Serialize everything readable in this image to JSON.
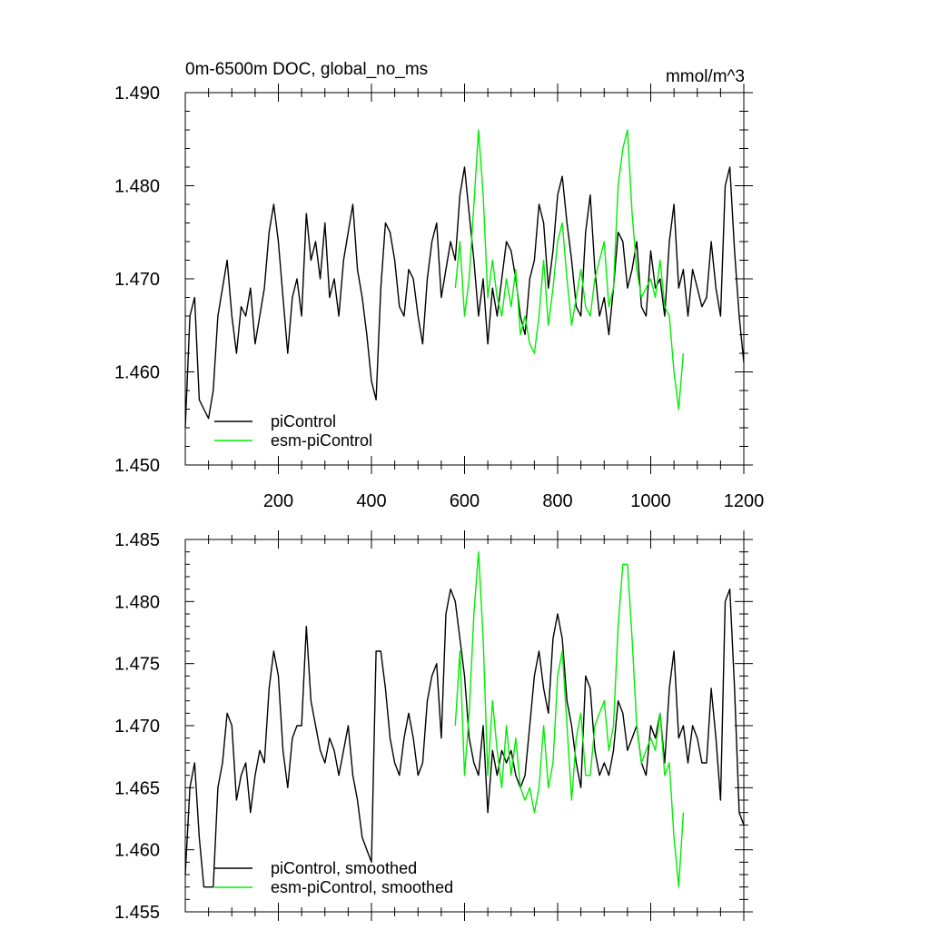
{
  "chart_data": [
    {
      "type": "line",
      "title": "0m-6500m DOC, global_no_ms",
      "units": "mmol/m^3",
      "xlabel": "",
      "ylabel": "",
      "xlim": [
        0,
        1200
      ],
      "ylim": [
        1.45,
        1.49
      ],
      "x_ticks": [
        200,
        400,
        600,
        800,
        1000,
        1200
      ],
      "x_tick_labels": [
        "200",
        "400",
        "600",
        "800",
        "1000",
        "1200"
      ],
      "y_ticks": [
        1.45,
        1.46,
        1.47,
        1.48,
        1.49
      ],
      "y_tick_labels": [
        "1.450",
        "1.460",
        "1.470",
        "1.480",
        "1.490"
      ],
      "grid": false,
      "legend_position": "bottom-left",
      "series": [
        {
          "name": "piControl",
          "color": "#000000",
          "x": [
            0,
            10,
            20,
            30,
            40,
            50,
            60,
            70,
            80,
            90,
            100,
            110,
            120,
            130,
            140,
            150,
            160,
            170,
            180,
            190,
            200,
            210,
            220,
            230,
            240,
            250,
            260,
            270,
            280,
            290,
            300,
            310,
            320,
            330,
            340,
            350,
            360,
            370,
            380,
            390,
            400,
            410,
            420,
            430,
            440,
            450,
            460,
            470,
            480,
            490,
            500,
            510,
            520,
            530,
            540,
            550,
            560,
            570,
            580,
            590,
            600,
            610,
            620,
            630,
            640,
            650,
            660,
            670,
            680,
            690,
            700,
            710,
            720,
            730,
            740,
            750,
            760,
            770,
            780,
            790,
            800,
            810,
            820,
            830,
            840,
            850,
            860,
            870,
            880,
            890,
            900,
            910,
            920,
            930,
            940,
            950,
            960,
            970,
            980,
            990,
            1000,
            1010,
            1020,
            1030,
            1040,
            1050,
            1060,
            1070,
            1080,
            1090,
            1100,
            1110,
            1120,
            1130,
            1140,
            1150,
            1160,
            1170,
            1180,
            1190,
            1200
          ],
          "values": [
            1.454,
            1.466,
            1.468,
            1.457,
            1.456,
            1.455,
            1.458,
            1.466,
            1.469,
            1.472,
            1.466,
            1.462,
            1.467,
            1.466,
            1.469,
            1.463,
            1.466,
            1.469,
            1.475,
            1.478,
            1.474,
            1.468,
            1.462,
            1.468,
            1.47,
            1.466,
            1.477,
            1.472,
            1.474,
            1.47,
            1.476,
            1.468,
            1.47,
            1.466,
            1.472,
            1.475,
            1.478,
            1.471,
            1.468,
            1.464,
            1.459,
            1.457,
            1.469,
            1.476,
            1.475,
            1.472,
            1.467,
            1.466,
            1.471,
            1.47,
            1.466,
            1.463,
            1.47,
            1.474,
            1.476,
            1.468,
            1.471,
            1.474,
            1.472,
            1.479,
            1.482,
            1.477,
            1.472,
            1.466,
            1.47,
            1.463,
            1.469,
            1.466,
            1.47,
            1.474,
            1.473,
            1.47,
            1.466,
            1.464,
            1.47,
            1.472,
            1.478,
            1.476,
            1.469,
            1.473,
            1.479,
            1.481,
            1.476,
            1.472,
            1.467,
            1.466,
            1.475,
            1.479,
            1.471,
            1.466,
            1.468,
            1.464,
            1.469,
            1.475,
            1.474,
            1.469,
            1.471,
            1.474,
            1.467,
            1.466,
            1.473,
            1.469,
            1.47,
            1.466,
            1.474,
            1.478,
            1.469,
            1.471,
            1.466,
            1.471,
            1.469,
            1.467,
            1.468,
            1.474,
            1.469,
            1.466,
            1.48,
            1.482,
            1.473,
            1.466,
            1.461
          ],
          "label": "piControl"
        },
        {
          "name": "esm-piControl",
          "color": "#00ee00",
          "x": [
            580,
            590,
            600,
            610,
            620,
            630,
            640,
            650,
            660,
            670,
            680,
            690,
            700,
            710,
            720,
            730,
            740,
            750,
            760,
            770,
            780,
            790,
            800,
            810,
            820,
            830,
            840,
            850,
            860,
            870,
            880,
            890,
            900,
            910,
            920,
            930,
            940,
            950,
            960,
            970,
            980,
            990,
            1000,
            1010,
            1020,
            1030,
            1040,
            1050,
            1060,
            1070
          ],
          "values": [
            1.469,
            1.474,
            1.466,
            1.47,
            1.478,
            1.486,
            1.479,
            1.468,
            1.472,
            1.468,
            1.466,
            1.47,
            1.467,
            1.471,
            1.464,
            1.466,
            1.463,
            1.462,
            1.466,
            1.472,
            1.465,
            1.469,
            1.474,
            1.476,
            1.47,
            1.465,
            1.468,
            1.471,
            1.467,
            1.466,
            1.47,
            1.472,
            1.474,
            1.467,
            1.469,
            1.48,
            1.484,
            1.486,
            1.477,
            1.471,
            1.468,
            1.469,
            1.47,
            1.468,
            1.472,
            1.467,
            1.466,
            1.46,
            1.456,
            1.462
          ],
          "label": "esm-piControl"
        }
      ]
    },
    {
      "type": "line",
      "title": "",
      "xlabel": "",
      "ylabel": "",
      "xlim": [
        0,
        1200
      ],
      "ylim": [
        1.455,
        1.485
      ],
      "y_ticks": [
        1.455,
        1.46,
        1.465,
        1.47,
        1.475,
        1.48,
        1.485
      ],
      "y_tick_labels": [
        "1.455",
        "1.460",
        "1.465",
        "1.470",
        "1.475",
        "1.480",
        "1.485"
      ],
      "grid": false,
      "legend_position": "bottom-center",
      "series": [
        {
          "name": "piControl, smoothed",
          "color": "#000000",
          "x": [
            0,
            10,
            20,
            30,
            40,
            50,
            60,
            70,
            80,
            90,
            100,
            110,
            120,
            130,
            140,
            150,
            160,
            170,
            180,
            190,
            200,
            210,
            220,
            230,
            240,
            250,
            260,
            270,
            280,
            290,
            300,
            310,
            320,
            330,
            340,
            350,
            360,
            370,
            380,
            390,
            400,
            410,
            420,
            430,
            440,
            450,
            460,
            470,
            480,
            490,
            500,
            510,
            520,
            530,
            540,
            550,
            560,
            570,
            580,
            590,
            600,
            610,
            620,
            630,
            640,
            650,
            660,
            670,
            680,
            690,
            700,
            710,
            720,
            730,
            740,
            750,
            760,
            770,
            780,
            790,
            800,
            810,
            820,
            830,
            840,
            850,
            860,
            870,
            880,
            890,
            900,
            910,
            920,
            930,
            940,
            950,
            960,
            970,
            980,
            990,
            1000,
            1010,
            1020,
            1030,
            1040,
            1050,
            1060,
            1070,
            1080,
            1090,
            1100,
            1110,
            1120,
            1130,
            1140,
            1150,
            1160,
            1170,
            1180,
            1190,
            1200
          ],
          "values": [
            1.458,
            1.465,
            1.467,
            1.461,
            1.457,
            1.457,
            1.457,
            1.465,
            1.467,
            1.471,
            1.47,
            1.464,
            1.466,
            1.467,
            1.463,
            1.466,
            1.468,
            1.467,
            1.473,
            1.476,
            1.474,
            1.468,
            1.465,
            1.469,
            1.47,
            1.47,
            1.478,
            1.472,
            1.47,
            1.468,
            1.467,
            1.469,
            1.468,
            1.466,
            1.468,
            1.47,
            1.466,
            1.464,
            1.461,
            1.46,
            1.459,
            1.476,
            1.476,
            1.473,
            1.469,
            1.467,
            1.466,
            1.469,
            1.471,
            1.469,
            1.466,
            1.467,
            1.472,
            1.474,
            1.475,
            1.469,
            1.479,
            1.481,
            1.48,
            1.477,
            1.474,
            1.469,
            1.467,
            1.466,
            1.47,
            1.463,
            1.468,
            1.466,
            1.468,
            1.467,
            1.468,
            1.466,
            1.465,
            1.466,
            1.47,
            1.474,
            1.476,
            1.473,
            1.471,
            1.477,
            1.479,
            1.477,
            1.472,
            1.47,
            1.467,
            1.465,
            1.474,
            1.473,
            1.468,
            1.466,
            1.467,
            1.466,
            1.468,
            1.472,
            1.471,
            1.468,
            1.469,
            1.47,
            1.467,
            1.466,
            1.47,
            1.469,
            1.471,
            1.467,
            1.473,
            1.476,
            1.469,
            1.47,
            1.467,
            1.47,
            1.469,
            1.467,
            1.467,
            1.473,
            1.469,
            1.464,
            1.48,
            1.481,
            1.473,
            1.463,
            1.462
          ]
        },
        {
          "name": "esm-piControl, smoothed",
          "color": "#00ee00",
          "x": [
            580,
            590,
            600,
            610,
            620,
            630,
            640,
            650,
            660,
            670,
            680,
            690,
            700,
            710,
            720,
            730,
            740,
            750,
            760,
            770,
            780,
            790,
            800,
            810,
            820,
            830,
            840,
            850,
            860,
            870,
            880,
            890,
            900,
            910,
            920,
            930,
            940,
            950,
            960,
            970,
            980,
            990,
            1000,
            1010,
            1020,
            1030,
            1040,
            1050,
            1060,
            1070
          ],
          "values": [
            1.47,
            1.476,
            1.466,
            1.471,
            1.479,
            1.484,
            1.477,
            1.466,
            1.472,
            1.468,
            1.465,
            1.47,
            1.466,
            1.469,
            1.465,
            1.464,
            1.465,
            1.463,
            1.465,
            1.47,
            1.465,
            1.467,
            1.474,
            1.476,
            1.47,
            1.464,
            1.469,
            1.471,
            1.466,
            1.466,
            1.47,
            1.471,
            1.472,
            1.468,
            1.47,
            1.478,
            1.483,
            1.483,
            1.477,
            1.47,
            1.467,
            1.468,
            1.469,
            1.468,
            1.471,
            1.466,
            1.467,
            1.461,
            1.457,
            1.463
          ]
        }
      ]
    }
  ]
}
